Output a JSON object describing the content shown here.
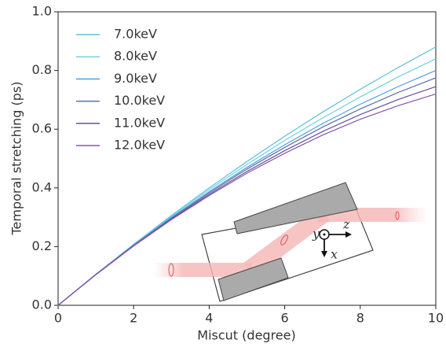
{
  "chart_data": {
    "type": "line",
    "xlabel": "Miscut (degree)",
    "ylabel": "Temporal stretching (ps)",
    "x": [
      0,
      1,
      2,
      3,
      4,
      5,
      6,
      7,
      8,
      9,
      10
    ],
    "series": [
      {
        "name": "7.0keV",
        "color": "#5bbfd6",
        "values": [
          0,
          0.106,
          0.208,
          0.306,
          0.4,
          0.49,
          0.576,
          0.658,
          0.736,
          0.81,
          0.88
        ]
      },
      {
        "name": "8.0keV",
        "color": "#6dd3e0",
        "values": [
          0,
          0.106,
          0.206,
          0.302,
          0.394,
          0.48,
          0.562,
          0.638,
          0.71,
          0.778,
          0.84
        ]
      },
      {
        "name": "9.0keV",
        "color": "#4f9fe0",
        "values": [
          0,
          0.105,
          0.205,
          0.299,
          0.387,
          0.47,
          0.547,
          0.619,
          0.685,
          0.745,
          0.8
        ]
      },
      {
        "name": "10.0keV",
        "color": "#5a6fa0",
        "values": [
          0,
          0.105,
          0.204,
          0.297,
          0.383,
          0.464,
          0.538,
          0.607,
          0.669,
          0.725,
          0.775
        ]
      },
      {
        "name": "11.0keV",
        "color": "#6a4f9c",
        "values": [
          0,
          0.105,
          0.203,
          0.294,
          0.378,
          0.456,
          0.527,
          0.592,
          0.65,
          0.701,
          0.745
        ]
      },
      {
        "name": "12.0keV",
        "color": "#8a55a8",
        "values": [
          0,
          0.104,
          0.202,
          0.292,
          0.374,
          0.45,
          0.518,
          0.58,
          0.634,
          0.68,
          0.72
        ]
      }
    ],
    "xlim": [
      0,
      10
    ],
    "xticks": [
      0,
      2,
      4,
      6,
      8,
      10
    ],
    "ylim": [
      0,
      1
    ],
    "yticks": [
      {
        "value": 0,
        "label": "0.0"
      },
      0.2,
      0.4,
      0.6,
      0.8,
      {
        "value": 1,
        "label": "1.0"
      }
    ],
    "legend": "upper-left",
    "annotations": [
      "y",
      "z",
      "x"
    ]
  }
}
